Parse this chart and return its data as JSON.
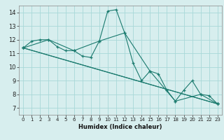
{
  "xlabel": "Humidex (Indice chaleur)",
  "bg_color": "#d7eeee",
  "grid_color": "#a8d8d8",
  "line_color": "#1a7a6e",
  "xlim": [
    -0.5,
    23.5
  ],
  "ylim": [
    6.5,
    14.5
  ],
  "xticks": [
    0,
    1,
    2,
    3,
    4,
    5,
    6,
    7,
    8,
    9,
    10,
    11,
    12,
    13,
    14,
    15,
    16,
    17,
    18,
    19,
    20,
    21,
    22,
    23
  ],
  "yticks": [
    7,
    8,
    9,
    10,
    11,
    12,
    13,
    14
  ],
  "series": [
    {
      "x": [
        0,
        1,
        2,
        3,
        4,
        5,
        6,
        7,
        8,
        9,
        10,
        11,
        12,
        13,
        14,
        15,
        16,
        17,
        18,
        19,
        20,
        21,
        22,
        23
      ],
      "y": [
        11.4,
        11.9,
        12.0,
        12.0,
        11.5,
        11.2,
        11.2,
        10.8,
        10.7,
        11.9,
        14.1,
        14.2,
        12.5,
        10.3,
        9.0,
        9.7,
        9.5,
        8.3,
        7.5,
        8.3,
        9.0,
        8.0,
        7.9,
        7.3
      ]
    },
    {
      "x": [
        0,
        3,
        6,
        9,
        12,
        15,
        18,
        21,
        23
      ],
      "y": [
        11.4,
        12.0,
        11.2,
        11.9,
        12.5,
        9.7,
        7.5,
        8.0,
        7.3
      ]
    },
    {
      "x": [
        0,
        23
      ],
      "y": [
        11.4,
        7.3
      ]
    },
    {
      "x": [
        0,
        23
      ],
      "y": [
        11.4,
        7.3
      ]
    }
  ]
}
